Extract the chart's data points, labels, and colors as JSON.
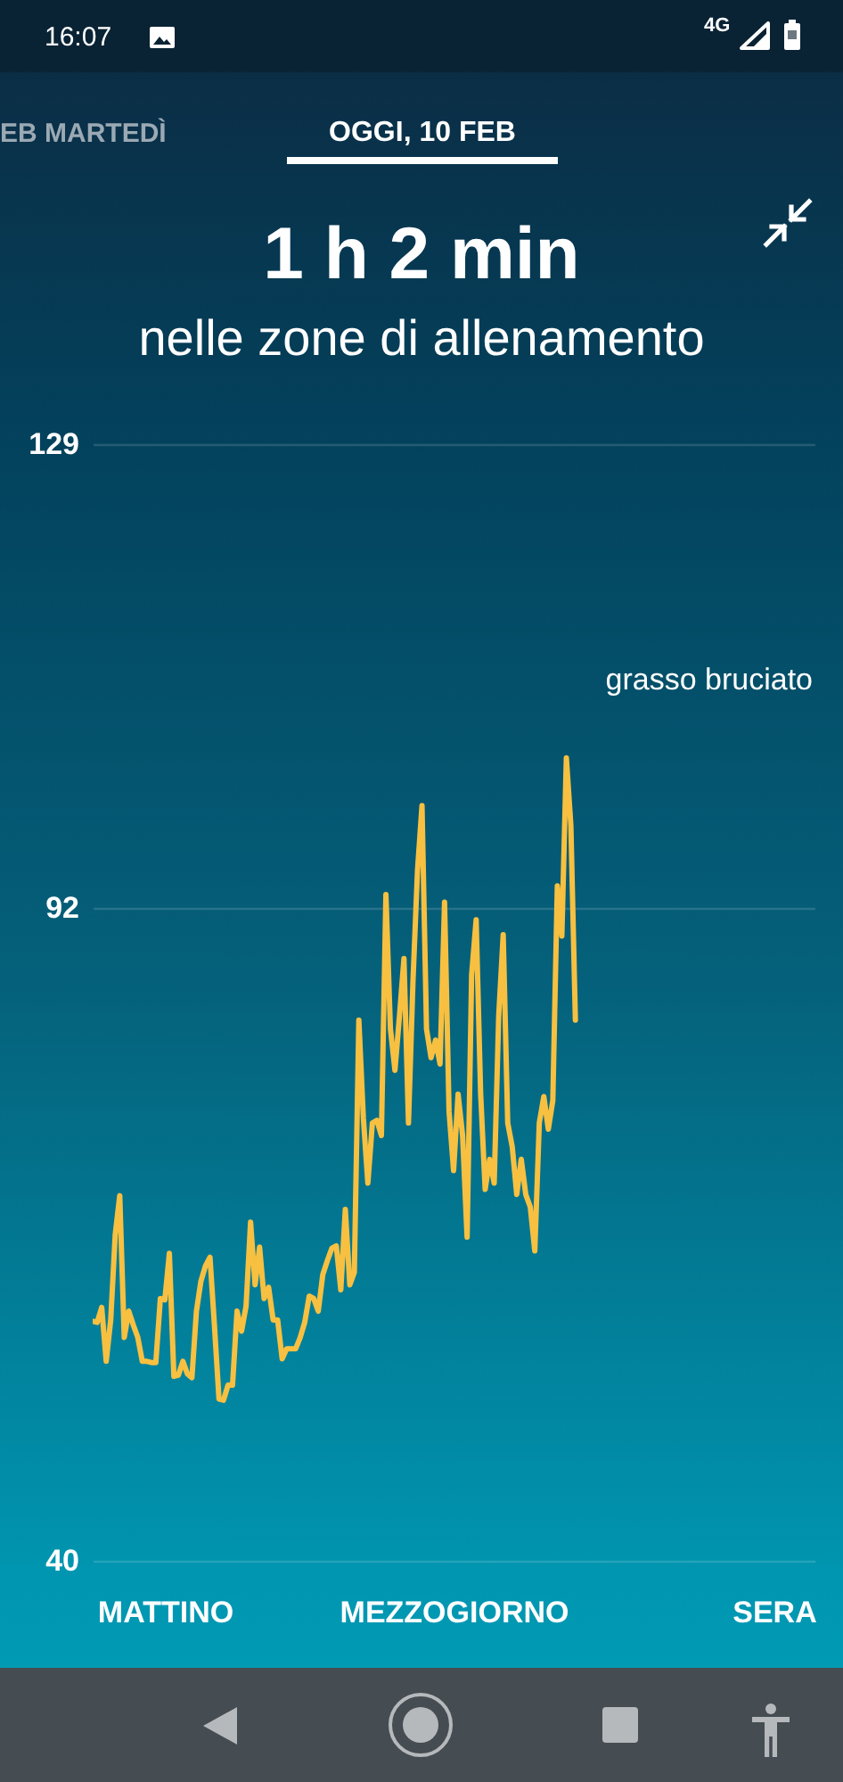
{
  "chart_data": {
    "type": "line",
    "title": "1 h 2 min",
    "subtitle": "nelle zone di allenamento",
    "annotations": [
      "16:07",
      "4G",
      "EB MARTEDÌ",
      "OGGI, 10 FEB",
      "grasso bruciato"
    ],
    "categories": [
      null,
      null,
      null,
      null,
      null,
      null,
      null,
      null,
      null,
      null,
      null,
      null,
      null,
      null,
      null,
      null,
      "MATTINO",
      null,
      null,
      null,
      null,
      null,
      null,
      null,
      null,
      null,
      null,
      null,
      null,
      null,
      null,
      null,
      null,
      null,
      null,
      null,
      null,
      null,
      null,
      null,
      null,
      null,
      null,
      null,
      null,
      null,
      null,
      null,
      null,
      null,
      null,
      null,
      null,
      null,
      null,
      null,
      null,
      null,
      null,
      null,
      null,
      null,
      null,
      null,
      null,
      null,
      null,
      null,
      null,
      null,
      null,
      null,
      null,
      null,
      null,
      null,
      null,
      null,
      null,
      null,
      "MEZZOGIORNO",
      null,
      null,
      null,
      null,
      null,
      null,
      null,
      null,
      null,
      null,
      null,
      null,
      null,
      null,
      null,
      null,
      null,
      null,
      null,
      null,
      null,
      null,
      null,
      null,
      null,
      null,
      null,
      null,
      null,
      null,
      null,
      null,
      null,
      null,
      null,
      null,
      null,
      null,
      null,
      null,
      null,
      null,
      null,
      null,
      null,
      null,
      null,
      null,
      null,
      null,
      null,
      null,
      null,
      null,
      null,
      null,
      null,
      null,
      null,
      null,
      null,
      null,
      null,
      null,
      null,
      null,
      null,
      null,
      null,
      null,
      "SERA",
      null,
      null,
      null,
      null,
      null,
      null,
      null,
      null,
      null
    ],
    "series": [
      {
        "color": "#f8c040",
        "values": [
          59.1,
          59.0,
          60.2,
          55.9,
          59.2,
          66.0,
          69.1,
          57.8,
          59.9,
          58.8,
          57.8,
          55.9,
          55.9,
          55.8,
          55.8,
          60.9,
          60.8,
          64.5,
          54.7,
          54.8,
          55.9,
          54.9,
          54.6,
          59.9,
          62.3,
          63.5,
          64.2,
          58.7,
          52.9,
          52.8,
          54.0,
          54.0,
          59.9,
          58.3,
          60.3,
          67.0,
          62.0,
          65.0,
          60.9,
          61.8,
          59.2,
          59.2,
          56.1,
          56.9,
          56.9,
          56.9,
          57.8,
          59.0,
          61.1,
          60.9,
          59.9,
          62.8,
          63.9,
          64.9,
          65.1,
          61.6,
          68.0,
          62.0,
          63.0,
          83.1,
          75.3,
          70.1,
          74.9,
          75.1,
          73.9,
          93.1,
          82.4,
          79.1,
          83.4,
          88.0,
          74.9,
          86.2,
          95.0,
          100.2,
          82.4,
          80.1,
          81.5,
          79.6,
          92.5,
          75.8,
          71.1,
          77.2,
          73.9,
          65.8,
          86.7,
          91.1,
          77.2,
          69.6,
          72.0,
          70.1,
          83.4,
          89.9,
          74.9,
          73.0,
          69.2,
          72.0,
          69.2,
          68.2,
          64.7,
          74.9,
          77.0,
          74.4,
          76.7,
          93.8,
          89.8,
          104.0,
          98.6,
          83.1,
          null,
          null,
          null,
          null,
          null,
          null,
          null,
          null,
          null,
          null,
          null,
          null,
          null,
          null,
          null,
          null,
          null,
          null,
          null,
          null,
          null,
          null,
          null,
          null,
          null,
          null,
          null,
          null,
          null,
          null,
          null,
          null,
          null,
          null,
          null,
          null,
          null,
          null,
          null,
          null,
          null,
          null,
          null,
          null,
          null,
          null,
          null,
          null,
          null,
          null,
          null,
          null,
          null
        ]
      }
    ],
    "ylim": [
      40,
      129
    ],
    "yticks": [
      40,
      92,
      129
    ],
    "grid": "y"
  }
}
